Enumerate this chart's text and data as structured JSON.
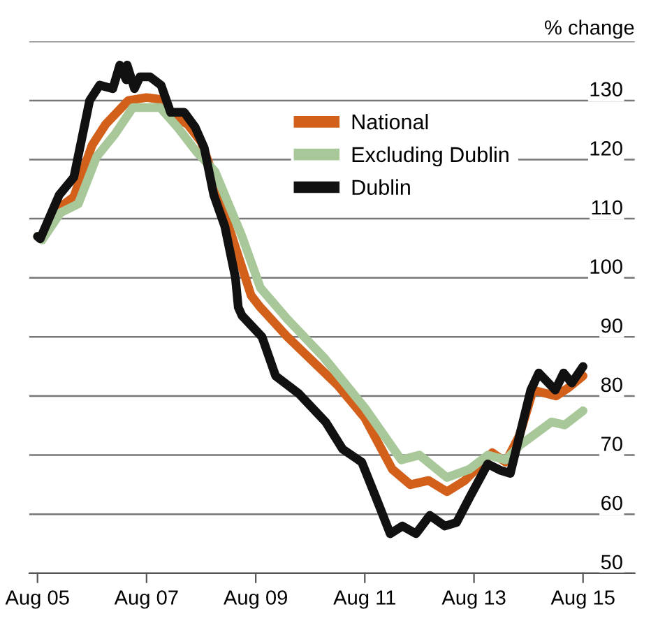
{
  "chart_data": {
    "type": "line",
    "ylabel": "% change",
    "xlim": [
      "2005-06-07",
      "2016-07-12"
    ],
    "ylim": [
      50,
      140
    ],
    "xticks": [
      {
        "value": "2005-08",
        "label": "Aug 05"
      },
      {
        "value": "2007-08",
        "label": "Aug 07"
      },
      {
        "value": "2009-08",
        "label": "Aug 09"
      },
      {
        "value": "2011-08",
        "label": "Aug 11"
      },
      {
        "value": "2013-08",
        "label": "Aug 13"
      },
      {
        "value": "2015-08",
        "label": "Aug 15"
      }
    ],
    "yticks": [
      50,
      60,
      70,
      80,
      90,
      100,
      110,
      120,
      130,
      {
        "value": 140,
        "label": null
      }
    ],
    "grid": "y",
    "legend": "top",
    "marker": "none",
    "line_style": "solid",
    "series": [
      {
        "name": "National",
        "color": "#d2601a",
        "x": [
          "2005-08",
          "2005-09",
          "2006-01",
          "2006-04",
          "2006-08",
          "2006-11",
          "2007-04",
          "2007-08",
          "2007-11",
          "2008-01",
          "2008-05",
          "2008-08",
          "2008-11",
          "2009-02",
          "2009-07",
          "2009-09",
          "2010-03",
          "2011-02",
          "2011-08",
          "2012-02",
          "2012-06",
          "2012-10",
          "2013-02",
          "2013-06",
          "2013-12",
          "2014-03",
          "2014-06",
          "2014-09",
          "2015-02",
          "2015-05",
          "2015-08"
        ],
        "values": [
          107,
          107,
          112,
          113.7,
          122.4,
          126,
          130,
          130.5,
          130.2,
          127.6,
          126,
          123,
          116.5,
          108.7,
          97,
          95,
          90,
          81.8,
          76.3,
          67.6,
          65,
          65.7,
          63.8,
          65.7,
          70.4,
          68.8,
          73.3,
          81,
          80,
          81.5,
          83.4
        ]
      },
      {
        "name": "Excluding Dublin",
        "color": "#a8c89a",
        "x": [
          "2005-08",
          "2005-09",
          "2006-01",
          "2006-05",
          "2006-09",
          "2007-01",
          "2007-05",
          "2007-11",
          "2008-03",
          "2008-07",
          "2008-11",
          "2009-05",
          "2009-09",
          "2010-03",
          "2010-11",
          "2011-08",
          "2012-04",
          "2012-08",
          "2013-02",
          "2013-07",
          "2013-11",
          "2014-03",
          "2014-06",
          "2015-01",
          "2015-04",
          "2015-08"
        ],
        "values": [
          107,
          106.4,
          111,
          112.5,
          120.5,
          124.3,
          128.8,
          128.8,
          125.3,
          121.3,
          118,
          107,
          98.3,
          93,
          86.5,
          78,
          69.2,
          70,
          66.2,
          67.6,
          70,
          69.2,
          71.6,
          75.6,
          75.1,
          77.5
        ]
      },
      {
        "name": "Dublin",
        "color": "#111111",
        "x": [
          "2005-08-01",
          "2005-08-19",
          "2005-12-24",
          "2006-04-01",
          "2006-07-16",
          "2006-09-21",
          "2006-12-18",
          "2007-02-03",
          "2007-03-18",
          "2007-03-24",
          "2007-05-12",
          "2007-06-18",
          "2007-08-24",
          "2007-11-06",
          "2008-01-09",
          "2008-04-09",
          "2008-06-21",
          "2008-08-21",
          "2008-10-24",
          "2009-01-06",
          "2009-03-18",
          "2009-04-06",
          "2009-05-01",
          "2009-09-12",
          "2009-12-12",
          "2010-05-16",
          "2010-11-12",
          "2011-03-06",
          "2011-07-12",
          "2011-10-12",
          "2012-01-18",
          "2012-04-09",
          "2012-07-09",
          "2012-10-09",
          "2013-01-18",
          "2013-04-06",
          "2013-07-06",
          "2013-11-01",
          "2014-01-27",
          "2014-04-01",
          "2014-08-16",
          "2014-10-09",
          "2015-01-27",
          "2015-03-24",
          "2015-05-18",
          "2015-08-01"
        ],
        "values": [
          107,
          106.6,
          114,
          117,
          130,
          132.6,
          132,
          136,
          133.5,
          136,
          132,
          134,
          134,
          132.6,
          128,
          128,
          125.5,
          122,
          114,
          108.7,
          100,
          95,
          93.6,
          90,
          83.4,
          80.4,
          75.6,
          71,
          68.8,
          63,
          56.7,
          58,
          56.7,
          59.8,
          58,
          58.6,
          63,
          68.5,
          67.4,
          66.9,
          81,
          83.9,
          81,
          83.9,
          82.2,
          85
        ]
      }
    ]
  }
}
